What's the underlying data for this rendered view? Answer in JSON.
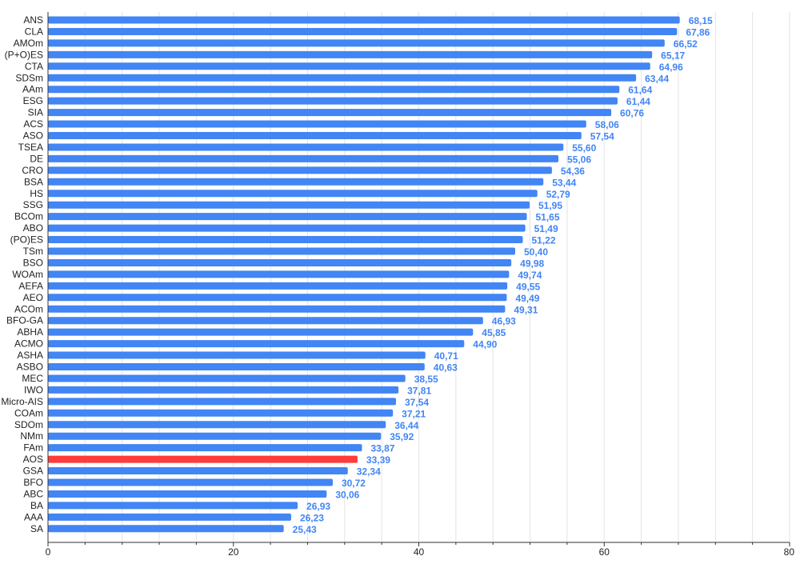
{
  "chart_data": {
    "type": "bar",
    "orientation": "horizontal",
    "title": "",
    "xlabel": "",
    "ylabel": "",
    "xlim": [
      0,
      80
    ],
    "x_ticks": [
      0,
      20,
      40,
      60,
      80
    ],
    "x_minor_step": 4,
    "grid": true,
    "legend": "none",
    "colors": {
      "bar": "#4285f4",
      "highlight": "#ff3b3b",
      "value_label": "#4285f4",
      "grid": "#e3e3e3",
      "axis": "#333333"
    },
    "highlight_category": "AOS",
    "categories": [
      "ANS",
      "CLA",
      "AMOm",
      "(P+O)ES",
      "CTA",
      "SDSm",
      "AAm",
      "ESG",
      "SIA",
      "ACS",
      "ASO",
      "TSEA",
      "DE",
      "CRO",
      "BSA",
      "HS",
      "SSG",
      "BCOm",
      "ABO",
      "(PO)ES",
      "TSm",
      "BSO",
      "WOAm",
      "AEFA",
      "AEO",
      "ACOm",
      "BFO-GA",
      "ABHA",
      "ACMO",
      "ASHA",
      "ASBO",
      "MEC",
      "IWO",
      "Micro-AIS",
      "COAm",
      "SDOm",
      "NMm",
      "FAm",
      "AOS",
      "GSA",
      "BFO",
      "ABC",
      "BA",
      "AAA",
      "SA"
    ],
    "values": [
      68.15,
      67.86,
      66.52,
      65.17,
      64.96,
      63.44,
      61.64,
      61.44,
      60.76,
      58.06,
      57.54,
      55.6,
      55.06,
      54.36,
      53.44,
      52.79,
      51.95,
      51.65,
      51.49,
      51.22,
      50.4,
      49.98,
      49.74,
      49.55,
      49.49,
      49.31,
      46.93,
      45.85,
      44.9,
      40.71,
      40.63,
      38.55,
      37.81,
      37.54,
      37.21,
      36.44,
      35.92,
      33.87,
      33.39,
      32.34,
      30.72,
      30.06,
      26.93,
      26.23,
      25.43
    ],
    "value_labels": [
      "68,15",
      "67,86",
      "66,52",
      "65,17",
      "64,96",
      "63,44",
      "61,64",
      "61,44",
      "60,76",
      "58,06",
      "57,54",
      "55,60",
      "55,06",
      "54,36",
      "53,44",
      "52,79",
      "51,95",
      "51,65",
      "51,49",
      "51,22",
      "50,40",
      "49,98",
      "49,74",
      "49,55",
      "49,49",
      "49,31",
      "46,93",
      "45,85",
      "44,90",
      "40,71",
      "40,63",
      "38,55",
      "37,81",
      "37,54",
      "37,21",
      "36,44",
      "35,92",
      "33,87",
      "33,39",
      "32,34",
      "30,72",
      "30,06",
      "26,93",
      "26,23",
      "25,43"
    ]
  }
}
